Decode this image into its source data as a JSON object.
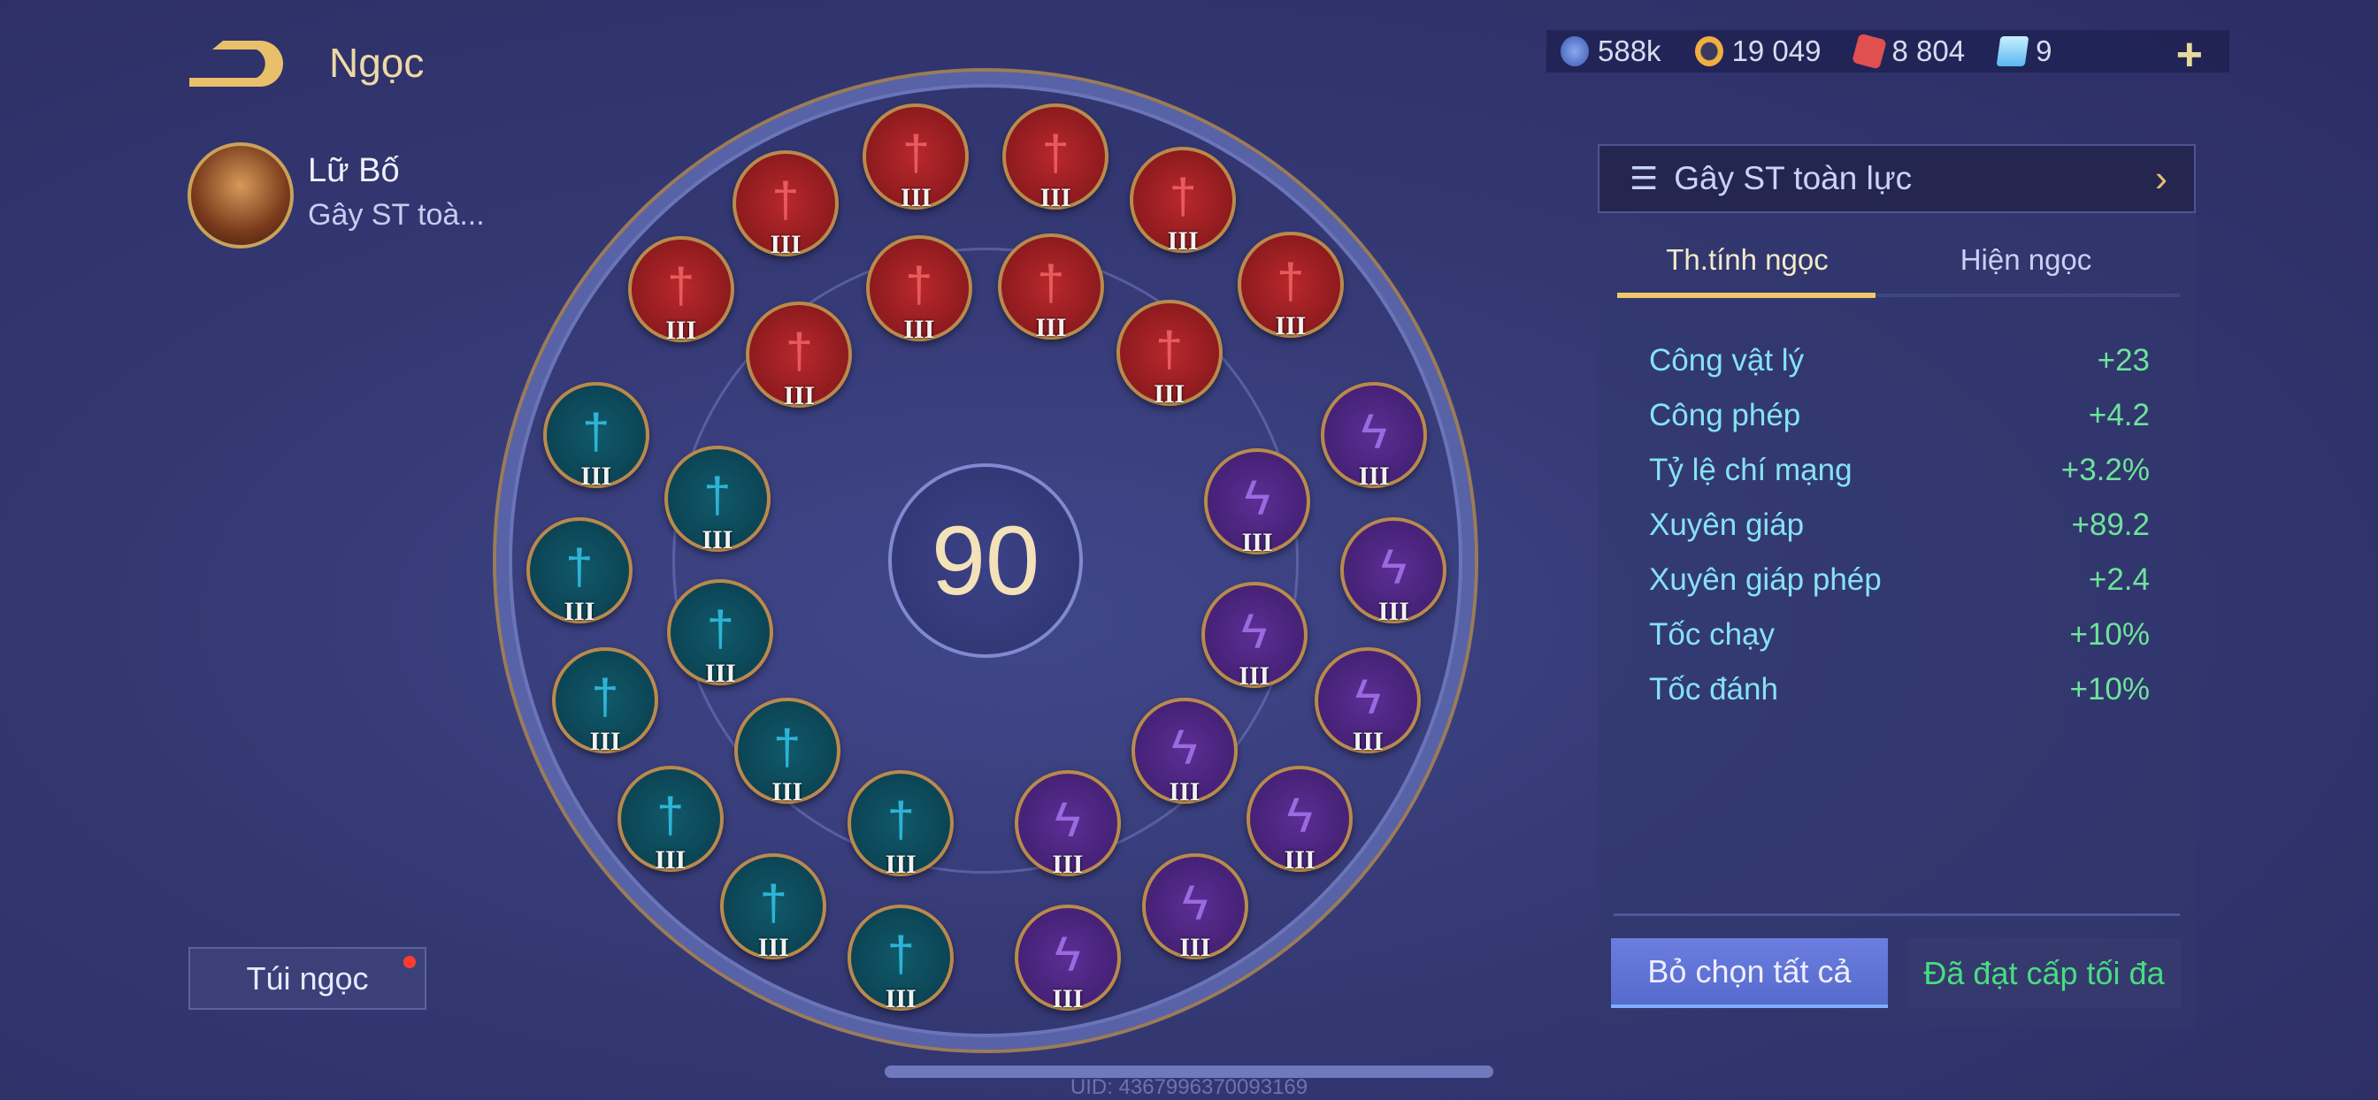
{
  "header": {
    "title": "Ngọc",
    "back_icon": "back-arrow-icon"
  },
  "hero": {
    "name": "Lữ Bố",
    "set_short": "Gây ST toà..."
  },
  "bag_button": {
    "label": "Túi ngọc",
    "has_notification": true
  },
  "currency": [
    {
      "icon": "silver-coin-icon",
      "value": "588k",
      "color": "#5b7fd8"
    },
    {
      "icon": "gold-coin-icon",
      "value": "19 049",
      "color": "#f0b040"
    },
    {
      "icon": "red-gem-icon",
      "value": "8 804",
      "color": "#e05050"
    },
    {
      "icon": "card-icon",
      "value": "9",
      "color": "#8fd8f8"
    }
  ],
  "level": "90",
  "gems": {
    "red": {
      "count": 10,
      "level": "III",
      "color": "#b8282c"
    },
    "teal": {
      "count": 10,
      "level": "III",
      "color": "#10596a"
    },
    "purple": {
      "count": 10,
      "level": "III",
      "color": "#5b2e94"
    }
  },
  "panel": {
    "preset": "Gây ST toàn lực",
    "tabs": [
      {
        "label": "Th.tính ngọc",
        "active": true
      },
      {
        "label": "Hiện ngọc",
        "active": false
      }
    ],
    "stats": [
      {
        "label": "Công vật lý",
        "value": "+23"
      },
      {
        "label": "Công phép",
        "value": "+4.2"
      },
      {
        "label": "Tỷ lệ chí mạng",
        "value": "+3.2%"
      },
      {
        "label": "Xuyên giáp",
        "value": "+89.2"
      },
      {
        "label": "Xuyên giáp phép",
        "value": "+2.4"
      },
      {
        "label": "Tốc chạy",
        "value": "+10%"
      },
      {
        "label": "Tốc đánh",
        "value": "+10%"
      }
    ],
    "deselect_label": "Bỏ chọn tất cả",
    "max_label": "Đã đạt cấp tối đa"
  },
  "uid": "UID: 4367996370093169"
}
